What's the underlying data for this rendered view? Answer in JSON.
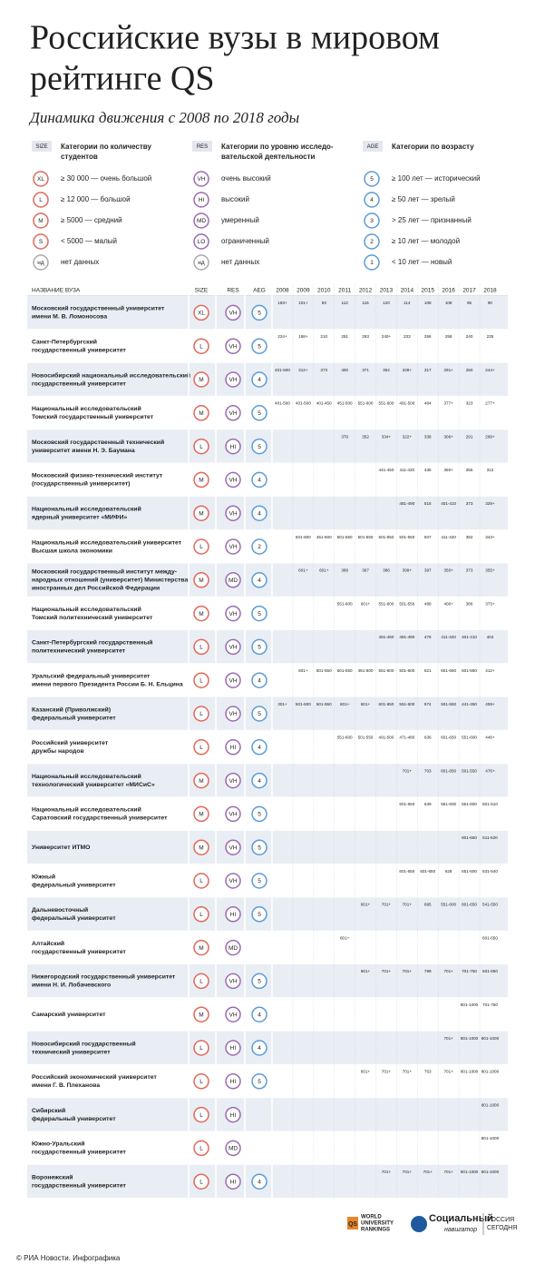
{
  "header": {
    "title": [
      "Российские вузы в мировом",
      "рейтинге QS"
    ],
    "subtitle": "Динамика движения с 2008 по 2018 годы"
  },
  "legend": [
    {
      "tag": "SIZE",
      "title": [
        "Категории по количеству",
        "студентов"
      ],
      "items": [
        {
          "code": "XL",
          "label": "≥ 30 000 — очень большой"
        },
        {
          "code": "L",
          "label": "≥ 12 000 — большой"
        },
        {
          "code": "M",
          "label": "≥ 5000 — средний"
        },
        {
          "code": "S",
          "label": "< 5000 — малый"
        },
        {
          "code": "нд",
          "label": "нет данных"
        }
      ]
    },
    {
      "tag": "RES",
      "title": [
        "Категории по уровню исследо-",
        "вательской деятельности"
      ],
      "items": [
        {
          "code": "VH",
          "label": "очень высокий"
        },
        {
          "code": "HI",
          "label": "высокий"
        },
        {
          "code": "MD",
          "label": "умеренный"
        },
        {
          "code": "LO",
          "label": "ограниченный"
        },
        {
          "code": "нд",
          "label": "нет данных"
        }
      ]
    },
    {
      "tag": "AGE",
      "title": [
        "Категории по возрасту"
      ],
      "items": [
        {
          "code": "5",
          "label": "≥ 100 лет — исторический"
        },
        {
          "code": "4",
          "label": "≥ 50 лет — зрелый"
        },
        {
          "code": "3",
          "label": "> 25 лет — признанный"
        },
        {
          "code": "2",
          "label": "≥ 10 лет — молодой"
        },
        {
          "code": "1",
          "label": "< 10 лет — новый"
        }
      ]
    }
  ],
  "table": {
    "columns": {
      "name": "НАЗВАНИЕ ВУЗА",
      "size": "SIZE",
      "res": "RES",
      "age": "AEG"
    },
    "years": [
      2008,
      2009,
      2010,
      2011,
      2012,
      2013,
      2014,
      2015,
      2016,
      2017,
      2018
    ],
    "rows": [
      {
        "name": [
          "Московский государственный университет",
          "имени М. В. Ломоносова"
        ],
        "size": "XL",
        "res": "VH",
        "age": "5",
        "ranks": [
          "183+",
          "101+",
          "93",
          "112",
          "116",
          "120",
          "114",
          "108",
          "108",
          "95",
          "90"
        ]
      },
      {
        "name": [
          "Санкт-Петербургский",
          "государственный университет"
        ],
        "size": "L",
        "res": "VH",
        "age": "5",
        "ranks": [
          "224+",
          "168+",
          "210",
          "251",
          "253",
          "240+",
          "233",
          "256",
          "258",
          "240",
          "235"
        ]
      },
      {
        "name": [
          "Новосибирский национальный исследовательский",
          "государственный университет"
        ],
        "size": "M",
        "res": "VH",
        "age": "4",
        "ranks": [
          "401-500",
          "312+",
          "373",
          "400",
          "371",
          "352",
          "328+",
          "317",
          "291+",
          "250",
          "244+"
        ]
      },
      {
        "name": [
          "Национальный исследовательский",
          "Томский государственный университет"
        ],
        "size": "M",
        "res": "VH",
        "age": "5",
        "ranks": [
          "401-500",
          "401-500",
          "401-450",
          "451-500",
          "551-600",
          "551-600",
          "491-500",
          "484",
          "377+",
          "323",
          "277+"
        ]
      },
      {
        "name": [
          "Московский государственный технический",
          "университет имени Н. Э. Баумана"
        ],
        "size": "L",
        "res": "HI",
        "age": "5",
        "ranks": [
          null,
          null,
          null,
          "379",
          "352",
          "334+",
          "322+",
          "338",
          "306+",
          "291",
          "299+"
        ]
      },
      {
        "name": [
          "Московский физико-технический институт",
          "(государственный университет)"
        ],
        "size": "M",
        "res": "VH",
        "age": "4",
        "ranks": [
          null,
          null,
          null,
          null,
          null,
          "441-450",
          "411-420",
          "436",
          "350+",
          "355",
          "312"
        ]
      },
      {
        "name": [
          "Национальный исследовательский",
          "ядерный университет «МИФИ»"
        ],
        "size": "M",
        "res": "VH",
        "age": "4",
        "ranks": [
          null,
          null,
          null,
          null,
          null,
          null,
          "481-490",
          "515",
          "401-410",
          "373",
          "329+"
        ]
      },
      {
        "name": [
          "Национальный исследовательский университет",
          "Высшая школа экономики"
        ],
        "size": "L",
        "res": "VH",
        "age": "2",
        "ranks": [
          null,
          "501-600",
          "451-500",
          "501-550",
          "501-550",
          "501-550",
          "501-550",
          "507",
          "411-420",
          "382",
          "343+"
        ]
      },
      {
        "name": [
          "Московский государственный институт между-",
          "народных отношений (университет) Министерства",
          "иностранных дел Российской Федерации"
        ],
        "size": "M",
        "res": "MD",
        "age": "4",
        "ranks": [
          null,
          "601+",
          "601+",
          "389",
          "367",
          "386",
          "399+",
          "397",
          "350+",
          "373",
          "355+"
        ]
      },
      {
        "name": [
          "Национальный исследовательский",
          "Томский политехнический университет"
        ],
        "size": "M",
        "res": "VH",
        "age": "5",
        "ranks": [
          null,
          null,
          null,
          "551-600",
          "601+",
          "551-600",
          "501-550",
          "488",
          "400+",
          "386",
          "373+"
        ]
      },
      {
        "name": [
          "Санкт-Петербургский государственный",
          "политехнический университет"
        ],
        "size": "L",
        "res": "VH",
        "age": "5",
        "ranks": [
          null,
          null,
          null,
          null,
          null,
          "451-460",
          "481-490",
          "476",
          "411-420",
          "401-410",
          "404"
        ]
      },
      {
        "name": [
          "Уральский федеральный университет",
          "имени первого Президента России Б. Н. Ельцина"
        ],
        "size": "L",
        "res": "VH",
        "age": "4",
        "ranks": [
          null,
          "601+",
          "501-550",
          "501-550",
          "451-500",
          "551-600",
          "501-600",
          "621",
          "601-650",
          "501-550",
          "412+"
        ]
      },
      {
        "name": [
          "Казанский (Приволжский)",
          "федеральный университет"
        ],
        "size": "L",
        "res": "VH",
        "age": "5",
        "ranks": [
          "301+",
          "501-600",
          "501-550",
          "601+",
          "601+",
          "601-650",
          "551-600",
          "574",
          "501-550",
          "441-450",
          "459+"
        ]
      },
      {
        "name": [
          "Российский университет",
          "дружбы народов"
        ],
        "size": "L",
        "res": "HI",
        "age": "4",
        "ranks": [
          null,
          null,
          null,
          "551-600",
          "501-550",
          "491-500",
          "471-480",
          "636",
          "601-650",
          "551-600",
          "446+"
        ]
      },
      {
        "name": [
          "Национальный исследовательский",
          "технологический университет «МИСиС»"
        ],
        "size": "M",
        "res": "VH",
        "age": "4",
        "ranks": [
          null,
          null,
          null,
          null,
          null,
          null,
          "701+",
          "703",
          "601-650",
          "501-550",
          "476+"
        ]
      },
      {
        "name": [
          "Национальный исследовательский",
          "Саратовский государственный университет"
        ],
        "size": "M",
        "res": "VH",
        "age": "5",
        "ranks": [
          null,
          null,
          null,
          null,
          null,
          null,
          "601-650",
          "639",
          "551-600",
          "551-600",
          "501-510"
        ]
      },
      {
        "name": [
          "Университет ИТМО"
        ],
        "size": "M",
        "res": "VH",
        "age": "5",
        "ranks": [
          null,
          null,
          null,
          null,
          null,
          null,
          null,
          null,
          null,
          "601-650",
          "511-520"
        ]
      },
      {
        "name": [
          "Южный",
          "федеральный университет"
        ],
        "size": "L",
        "res": "VH",
        "age": "5",
        "ranks": [
          null,
          null,
          null,
          null,
          null,
          null,
          "601-650",
          "601-650",
          "628",
          "551-600",
          "531-540"
        ]
      },
      {
        "name": [
          "Дальневосточный",
          "федеральный университет"
        ],
        "size": "L",
        "res": "HI",
        "age": "5",
        "ranks": [
          null,
          null,
          null,
          null,
          "601+",
          "701+",
          "701+",
          "695",
          "551-600",
          "601-650",
          "541-550"
        ]
      },
      {
        "name": [
          "Алтайский",
          "государственный университет"
        ],
        "size": "M",
        "res": "MD",
        "age": null,
        "ranks": [
          null,
          null,
          null,
          "601+",
          null,
          null,
          null,
          null,
          null,
          null,
          "601-650"
        ]
      },
      {
        "name": [
          "Нижегородский государственный университет",
          "имени Н. И. Лобачевского"
        ],
        "size": "L",
        "res": "VH",
        "age": "5",
        "ranks": [
          null,
          null,
          null,
          null,
          "601+",
          "701+",
          "701+",
          "799",
          "701+",
          "701-750",
          "601-650"
        ]
      },
      {
        "name": [
          "Самарский университет"
        ],
        "size": "M",
        "res": "VH",
        "age": "4",
        "ranks": [
          null,
          null,
          null,
          null,
          null,
          null,
          null,
          null,
          null,
          "801-1000",
          "701-750"
        ]
      },
      {
        "name": [
          "Новосибирский государственный",
          "технический университет"
        ],
        "size": "L",
        "res": "HI",
        "age": "4",
        "ranks": [
          null,
          null,
          null,
          null,
          null,
          null,
          null,
          null,
          "701+",
          "801-1000",
          "801-1000"
        ]
      },
      {
        "name": [
          "Российский экономический университет",
          "имени Г. В. Плеханова"
        ],
        "size": "L",
        "res": "HI",
        "age": "5",
        "ranks": [
          null,
          null,
          null,
          null,
          "601+",
          "701+",
          "701+",
          "753",
          "701+",
          "801-1000",
          "801-1000"
        ]
      },
      {
        "name": [
          "Сибирский",
          "федеральный университет"
        ],
        "size": "L",
        "res": "HI",
        "age": null,
        "ranks": [
          null,
          null,
          null,
          null,
          null,
          null,
          null,
          null,
          null,
          null,
          "801-1000"
        ]
      },
      {
        "name": [
          "Южно-Уральский",
          "государственный университет"
        ],
        "size": "L",
        "res": "MD",
        "age": null,
        "ranks": [
          null,
          null,
          null,
          null,
          null,
          null,
          null,
          null,
          null,
          null,
          "801-1000"
        ]
      },
      {
        "name": [
          "Воронежский",
          "государственный университет"
        ],
        "size": "L",
        "res": "HI",
        "age": "4",
        "ranks": [
          null,
          null,
          null,
          null,
          null,
          "701+",
          "701+",
          "701+",
          "701+",
          "801-1000",
          "801-1000"
        ]
      }
    ]
  },
  "footer": {
    "qs": [
      "WORLD",
      "UNIVERSITY",
      "RANKINGS"
    ],
    "navigator": [
      "Социальный",
      "навигатор"
    ],
    "agency": [
      "РОССИЯ",
      "СЕГОДНЯ"
    ],
    "copyright": "© РИА Новости. Инфографика"
  }
}
